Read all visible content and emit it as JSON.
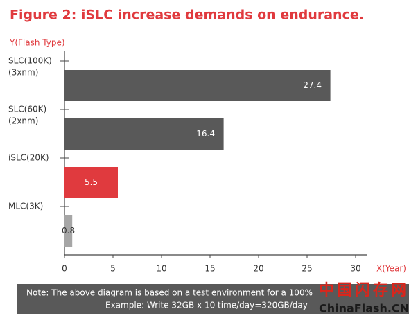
{
  "chart_data": {
    "type": "bar",
    "orientation": "horizontal",
    "title": "Figure 2: iSLC increase demands on endurance.",
    "y_label": "Y(Flash Type)",
    "x_label": "X(Year)",
    "categories": [
      [
        "SLC(100K)",
        "(3xnm)"
      ],
      [
        "SLC(60K)",
        "(2xnm)"
      ],
      [
        "iSLC(20K)"
      ],
      [
        "MLC(3K)"
      ]
    ],
    "values": [
      27.4,
      16.4,
      5.5,
      0.8
    ],
    "colors": [
      "#595959",
      "#595959",
      "#e03a3e",
      "#a6a6a6"
    ],
    "xlim": [
      0,
      30
    ],
    "xticks": [
      0,
      5,
      10,
      15,
      20,
      25,
      30
    ],
    "note": [
      "Note: The above diagram is based on a test environment for a 100%",
      "Example: Write 32GB x 10 time/day=320GB/day"
    ],
    "watermark": [
      "中国闪存网",
      "ChinaFlash.CN"
    ]
  }
}
